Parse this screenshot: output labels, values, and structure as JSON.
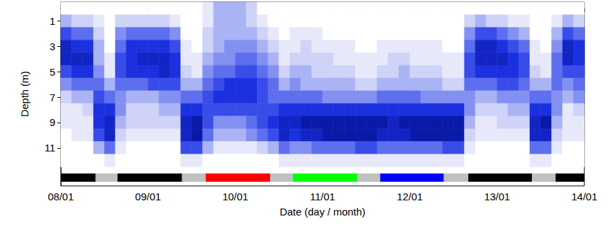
{
  "chart_data": {
    "type": "heatmap",
    "x_label": "Date (day / month)",
    "y_label": "Depth (m)",
    "xlim": [
      8,
      14
    ],
    "xticks": [
      {
        "value": 8,
        "label": "08/01"
      },
      {
        "value": 9,
        "label": "09/01"
      },
      {
        "value": 10,
        "label": "10/01"
      },
      {
        "value": 11,
        "label": "11/01"
      },
      {
        "value": 12,
        "label": "12/01"
      },
      {
        "value": 13,
        "label": "13/01"
      },
      {
        "value": 14,
        "label": "14/01"
      }
    ],
    "ylim": [
      -0.5,
      14
    ],
    "yticks": [
      1,
      3,
      5,
      7,
      9,
      11
    ],
    "time_edges": [
      8,
      8.125,
      8.25,
      8.375,
      8.5,
      8.625,
      8.75,
      8.875,
      9,
      9.125,
      9.25,
      9.375,
      9.5,
      9.625,
      9.75,
      9.875,
      10,
      10.125,
      10.25,
      10.375,
      10.5,
      10.625,
      10.75,
      10.875,
      11,
      11.125,
      11.25,
      11.375,
      11.5,
      11.625,
      11.75,
      11.875,
      12,
      12.125,
      12.25,
      12.375,
      12.5,
      12.625,
      12.75,
      12.875,
      13,
      13.125,
      13.25,
      13.375,
      13.5,
      13.625,
      13.75,
      13.875,
      14
    ],
    "depth_edges": [
      -0.5,
      0.5,
      1.5,
      2.5,
      3.5,
      4.5,
      5.5,
      6.5,
      7.5,
      8.5,
      9.5,
      10.5,
      11.5,
      12.5
    ],
    "density": [
      [
        0,
        3,
        6,
        8,
        8,
        6,
        4,
        2,
        1,
        1,
        0,
        0,
        0
      ],
      [
        0,
        2,
        5,
        7,
        8,
        7,
        5,
        3,
        1,
        1,
        1,
        0,
        0
      ],
      [
        0,
        2,
        5,
        7,
        8,
        7,
        5,
        3,
        2,
        1,
        1,
        0,
        0
      ],
      [
        0,
        1,
        2,
        3,
        3,
        4,
        5,
        6,
        7,
        7,
        6,
        3,
        0
      ],
      [
        0,
        0,
        0,
        0,
        1,
        1,
        3,
        5,
        7,
        8,
        8,
        5,
        1
      ],
      [
        0,
        2,
        4,
        5,
        6,
        6,
        5,
        4,
        4,
        3,
        2,
        1,
        0
      ],
      [
        0,
        2,
        5,
        7,
        7,
        7,
        5,
        3,
        2,
        2,
        1,
        0,
        0
      ],
      [
        0,
        2,
        5,
        7,
        8,
        7,
        5,
        3,
        2,
        2,
        1,
        0,
        0
      ],
      [
        0,
        2,
        5,
        7,
        8,
        7,
        6,
        3,
        2,
        2,
        1,
        0,
        0
      ],
      [
        0,
        2,
        5,
        7,
        8,
        8,
        6,
        4,
        3,
        2,
        1,
        0,
        0
      ],
      [
        0,
        1,
        4,
        6,
        7,
        7,
        6,
        4,
        3,
        2,
        1,
        0,
        0
      ],
      [
        0,
        0,
        0,
        1,
        1,
        2,
        3,
        5,
        7,
        8,
        8,
        6,
        1
      ],
      [
        0,
        0,
        0,
        0,
        1,
        1,
        3,
        5,
        7,
        9,
        9,
        6,
        1
      ],
      [
        1,
        1,
        2,
        2,
        3,
        4,
        5,
        6,
        6,
        6,
        5,
        3,
        0
      ],
      [
        3,
        3,
        3,
        3,
        4,
        5,
        6,
        7,
        6,
        4,
        3,
        1,
        0
      ],
      [
        3,
        3,
        3,
        4,
        4,
        5,
        7,
        7,
        6,
        4,
        3,
        1,
        0
      ],
      [
        3,
        3,
        3,
        4,
        5,
        6,
        7,
        7,
        6,
        4,
        3,
        1,
        0
      ],
      [
        2,
        2,
        3,
        4,
        5,
        6,
        7,
        7,
        6,
        5,
        4,
        1,
        0
      ],
      [
        0,
        1,
        2,
        3,
        4,
        5,
        6,
        6,
        6,
        6,
        5,
        2,
        0
      ],
      [
        0,
        0,
        1,
        2,
        3,
        4,
        5,
        5,
        6,
        7,
        6,
        3,
        0
      ],
      [
        0,
        0,
        0,
        1,
        1,
        2,
        3,
        5,
        7,
        8,
        8,
        5,
        1
      ],
      [
        0,
        0,
        1,
        1,
        2,
        3,
        4,
        5,
        7,
        8,
        7,
        4,
        1
      ],
      [
        0,
        0,
        1,
        2,
        2,
        3,
        3,
        5,
        7,
        9,
        8,
        4,
        1
      ],
      [
        0,
        0,
        1,
        1,
        2,
        2,
        3,
        5,
        7,
        9,
        8,
        5,
        1
      ],
      [
        0,
        0,
        0,
        1,
        2,
        2,
        3,
        4,
        7,
        9,
        9,
        5,
        1
      ],
      [
        0,
        0,
        0,
        1,
        1,
        2,
        3,
        4,
        7,
        9,
        9,
        5,
        1
      ],
      [
        0,
        0,
        0,
        1,
        1,
        2,
        3,
        4,
        7,
        9,
        9,
        5,
        1
      ],
      [
        0,
        0,
        0,
        0,
        1,
        1,
        2,
        4,
        7,
        9,
        9,
        6,
        1
      ],
      [
        0,
        0,
        0,
        0,
        1,
        1,
        2,
        4,
        7,
        9,
        9,
        6,
        1
      ],
      [
        0,
        0,
        0,
        1,
        1,
        2,
        3,
        5,
        7,
        9,
        8,
        5,
        1
      ],
      [
        0,
        0,
        0,
        1,
        2,
        2,
        3,
        5,
        7,
        8,
        8,
        5,
        1
      ],
      [
        0,
        0,
        0,
        1,
        2,
        3,
        3,
        5,
        7,
        9,
        8,
        5,
        1
      ],
      [
        0,
        0,
        0,
        1,
        1,
        2,
        3,
        5,
        7,
        9,
        9,
        5,
        1
      ],
      [
        0,
        0,
        0,
        1,
        1,
        2,
        3,
        4,
        7,
        9,
        9,
        5,
        1
      ],
      [
        0,
        0,
        0,
        1,
        1,
        2,
        3,
        4,
        7,
        9,
        9,
        5,
        1
      ],
      [
        0,
        0,
        0,
        0,
        1,
        1,
        2,
        4,
        7,
        9,
        9,
        6,
        1
      ],
      [
        0,
        0,
        0,
        0,
        1,
        1,
        2,
        4,
        7,
        9,
        9,
        6,
        1
      ],
      [
        0,
        2,
        4,
        5,
        6,
        6,
        5,
        4,
        4,
        3,
        2,
        1,
        0
      ],
      [
        0,
        3,
        6,
        8,
        8,
        7,
        5,
        3,
        2,
        1,
        1,
        0,
        0
      ],
      [
        0,
        2,
        6,
        8,
        8,
        7,
        5,
        3,
        2,
        1,
        1,
        0,
        0
      ],
      [
        0,
        2,
        5,
        7,
        8,
        7,
        6,
        4,
        2,
        2,
        1,
        0,
        0
      ],
      [
        0,
        1,
        4,
        6,
        7,
        7,
        6,
        4,
        3,
        2,
        1,
        0,
        0
      ],
      [
        0,
        1,
        3,
        5,
        6,
        6,
        5,
        4,
        3,
        2,
        1,
        0,
        0
      ],
      [
        0,
        0,
        0,
        1,
        1,
        2,
        3,
        5,
        7,
        8,
        8,
        5,
        1
      ],
      [
        0,
        0,
        0,
        0,
        1,
        1,
        3,
        5,
        7,
        9,
        8,
        5,
        1
      ],
      [
        0,
        1,
        3,
        4,
        5,
        5,
        5,
        4,
        4,
        3,
        2,
        1,
        0
      ],
      [
        0,
        3,
        6,
        8,
        8,
        6,
        4,
        3,
        1,
        1,
        1,
        0,
        0
      ],
      [
        0,
        2,
        5,
        7,
        7,
        6,
        5,
        4,
        2,
        1,
        1,
        0,
        0
      ]
    ],
    "periods": [
      {
        "start": 8.0,
        "end": 8.4,
        "color": "#000000"
      },
      {
        "start": 8.4,
        "end": 8.65,
        "color": "#c0c0c0"
      },
      {
        "start": 8.65,
        "end": 9.39,
        "color": "#000000"
      },
      {
        "start": 9.39,
        "end": 9.66,
        "color": "#c0c0c0"
      },
      {
        "start": 9.66,
        "end": 10.4,
        "color": "#ff0000"
      },
      {
        "start": 10.4,
        "end": 10.66,
        "color": "#c0c0c0"
      },
      {
        "start": 10.66,
        "end": 11.4,
        "color": "#00ff00"
      },
      {
        "start": 11.4,
        "end": 11.66,
        "color": "#c0c0c0"
      },
      {
        "start": 11.66,
        "end": 12.39,
        "color": "#0000ff"
      },
      {
        "start": 12.39,
        "end": 12.67,
        "color": "#c0c0c0"
      },
      {
        "start": 12.67,
        "end": 13.4,
        "color": "#000000"
      },
      {
        "start": 13.4,
        "end": 13.67,
        "color": "#c0c0c0"
      },
      {
        "start": 13.67,
        "end": 14.0,
        "color": "#000000"
      }
    ]
  }
}
